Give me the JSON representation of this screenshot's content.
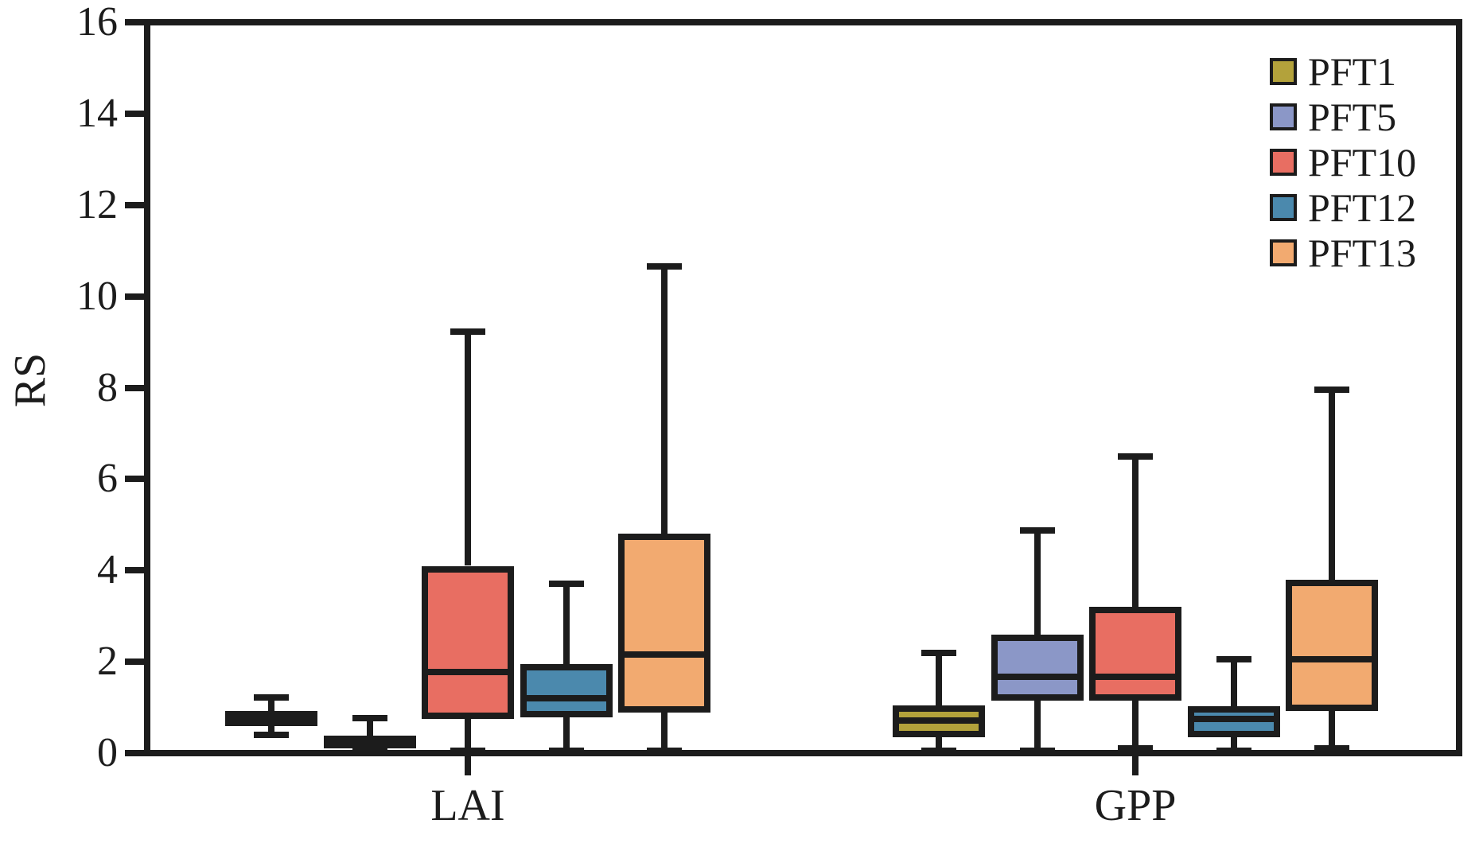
{
  "chart_data": {
    "type": "boxplot",
    "title": "",
    "ylabel": "RS",
    "xlabel": "",
    "ylim": [
      0,
      16
    ],
    "yticks": [
      0,
      2,
      4,
      6,
      8,
      10,
      12,
      14,
      16
    ],
    "categories": [
      "LAI",
      "GPP"
    ],
    "grid": false,
    "legend_position": "top-right",
    "frame_color": "#1c1c1c",
    "series": [
      {
        "name": "PFT1",
        "color": "#b3a23b",
        "boxes": [
          {
            "low": 0.4,
            "q1": 0.6,
            "median": 0.75,
            "q3": 0.92,
            "high": 1.22
          },
          {
            "low": 0.05,
            "q1": 0.35,
            "median": 0.72,
            "q3": 1.05,
            "high": 2.2
          }
        ]
      },
      {
        "name": "PFT5",
        "color": "#8b97c7",
        "boxes": [
          {
            "low": 0.03,
            "q1": 0.1,
            "median": 0.22,
            "q3": 0.38,
            "high": 0.77
          },
          {
            "low": 0.05,
            "q1": 1.15,
            "median": 1.68,
            "q3": 2.6,
            "high": 4.88
          }
        ]
      },
      {
        "name": "PFT10",
        "color": "#e86e62",
        "boxes": [
          {
            "low": 0.05,
            "q1": 0.74,
            "median": 1.78,
            "q3": 4.1,
            "high": 9.23
          },
          {
            "low": 0.1,
            "q1": 1.15,
            "median": 1.67,
            "q3": 3.2,
            "high": 6.5
          }
        ]
      },
      {
        "name": "PFT12",
        "color": "#4b89ad",
        "boxes": [
          {
            "low": 0.05,
            "q1": 0.78,
            "median": 1.21,
            "q3": 1.95,
            "high": 3.7
          },
          {
            "low": 0.05,
            "q1": 0.35,
            "median": 0.74,
            "q3": 1.03,
            "high": 2.05
          }
        ]
      },
      {
        "name": "PFT13",
        "color": "#f2aa70",
        "boxes": [
          {
            "low": 0.05,
            "q1": 0.88,
            "median": 2.16,
            "q3": 4.8,
            "high": 10.65
          },
          {
            "low": 0.1,
            "q1": 0.92,
            "median": 2.05,
            "q3": 3.8,
            "high": 7.95
          }
        ]
      }
    ]
  }
}
